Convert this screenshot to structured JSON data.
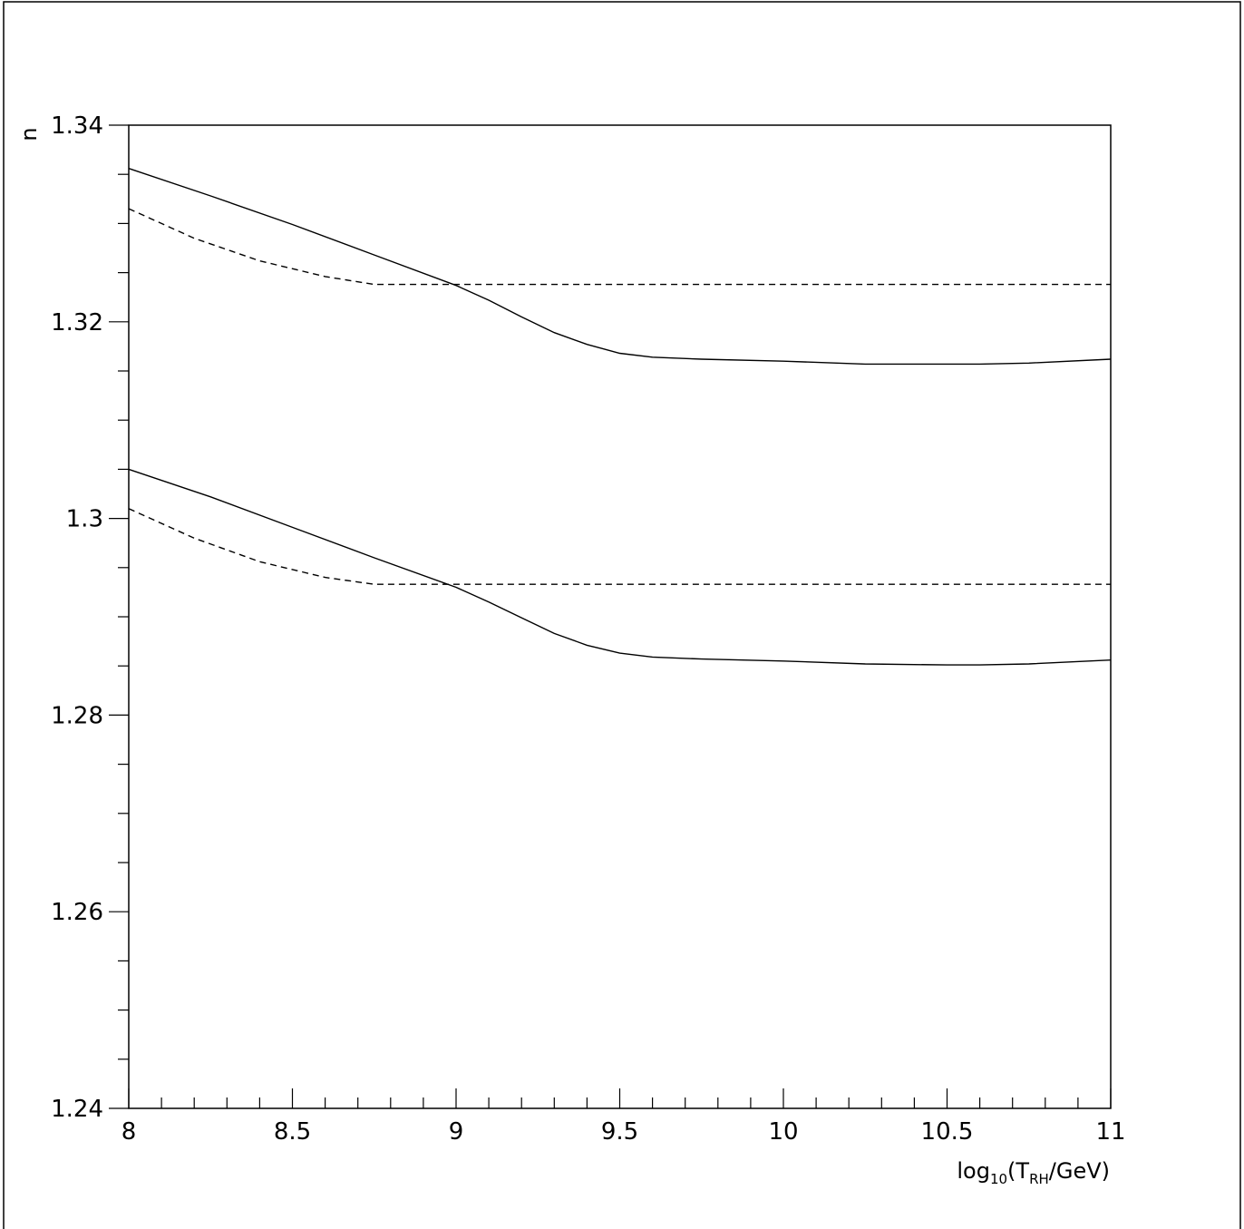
{
  "chart_data": {
    "type": "line",
    "title": "",
    "xlabel": "log10(TRH/GeV)",
    "xlabel_parts": {
      "pre": "log",
      "sub1": "10",
      "mid": "(T",
      "sub2": "RH",
      "post": "/GeV)"
    },
    "ylabel": "n",
    "xlim": [
      8,
      11
    ],
    "ylim": [
      1.24,
      1.34
    ],
    "x_major_ticks": [
      8,
      8.5,
      9,
      9.5,
      10,
      10.5,
      11
    ],
    "x_tick_labels": [
      "8",
      "8.5",
      "9",
      "9.5",
      "10",
      "10.5",
      "11"
    ],
    "x_minor_step": 0.1,
    "y_major_ticks": [
      1.24,
      1.26,
      1.28,
      1.3,
      1.32,
      1.34
    ],
    "y_tick_labels": [
      "1.24",
      "1.26",
      "1.28",
      "1.3",
      "1.32",
      "1.34"
    ],
    "y_minor_step": 0.005,
    "grid": false,
    "series": [
      {
        "style": "solid",
        "x": [
          8.0,
          8.25,
          8.5,
          8.75,
          9.0,
          9.1,
          9.2,
          9.3,
          9.4,
          9.5,
          9.6,
          9.75,
          10.0,
          10.25,
          10.5,
          10.6,
          10.75,
          11.0
        ],
        "y": [
          1.3356,
          1.3328,
          1.3299,
          1.3268,
          1.3237,
          1.3222,
          1.3205,
          1.3189,
          1.3177,
          1.3168,
          1.3164,
          1.3162,
          1.316,
          1.3157,
          1.3157,
          1.3157,
          1.3158,
          1.3162
        ]
      },
      {
        "style": "dashed",
        "x": [
          8.0,
          8.2,
          8.4,
          8.6,
          8.75,
          8.85,
          9.0,
          9.5,
          10.0,
          10.5,
          11.0
        ],
        "y": [
          1.3315,
          1.3285,
          1.3262,
          1.3246,
          1.3238,
          1.3238,
          1.3238,
          1.3238,
          1.3238,
          1.3238,
          1.3238
        ]
      },
      {
        "style": "solid",
        "x": [
          8.0,
          8.25,
          8.5,
          8.75,
          9.0,
          9.1,
          9.2,
          9.3,
          9.4,
          9.5,
          9.6,
          9.75,
          10.0,
          10.25,
          10.5,
          10.6,
          10.75,
          11.0
        ],
        "y": [
          1.305,
          1.3022,
          1.2991,
          1.296,
          1.293,
          1.2915,
          1.2899,
          1.2883,
          1.2871,
          1.2863,
          1.2859,
          1.2857,
          1.2855,
          1.2852,
          1.2851,
          1.2851,
          1.2852,
          1.2856
        ]
      },
      {
        "style": "dashed",
        "x": [
          8.0,
          8.2,
          8.4,
          8.6,
          8.75,
          8.85,
          9.0,
          9.5,
          10.0,
          10.5,
          11.0
        ],
        "y": [
          1.301,
          1.298,
          1.2956,
          1.294,
          1.2933,
          1.2933,
          1.2933,
          1.2933,
          1.2933,
          1.2933,
          1.2933
        ]
      }
    ]
  }
}
